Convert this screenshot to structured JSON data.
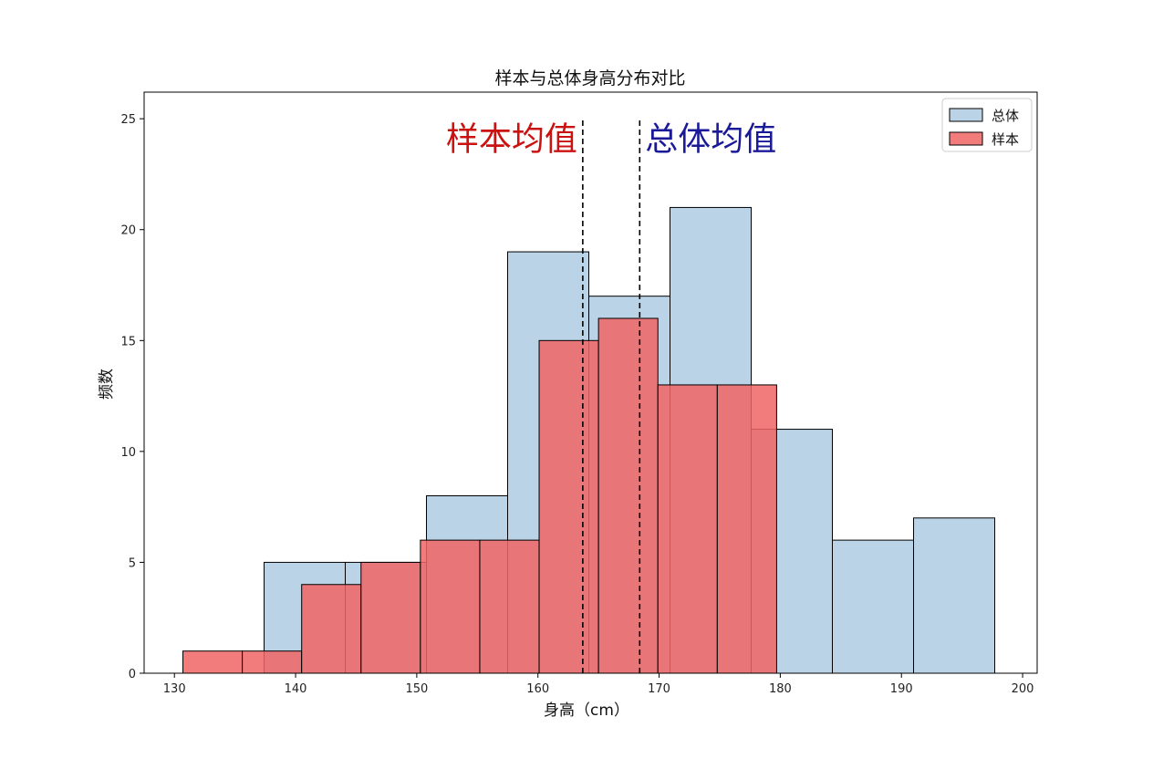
{
  "chart_data": {
    "type": "bar",
    "title": "样本与总体身高分布对比",
    "xlabel": "身高（cm）",
    "ylabel": "频数",
    "xlim": [
      127.5,
      201.2
    ],
    "ylim": [
      0,
      26.2
    ],
    "xticks": [
      130,
      140,
      150,
      160,
      170,
      180,
      190,
      200
    ],
    "yticks": [
      0,
      5,
      10,
      15,
      20,
      25
    ],
    "grid": false,
    "legend_position": "top-right",
    "series": [
      {
        "name": "总体",
        "color": "#a9c8e0",
        "bins": [
          {
            "x0": 137.4,
            "x1": 144.1,
            "count": 5
          },
          {
            "x0": 144.1,
            "x1": 150.8,
            "count": 5
          },
          {
            "x0": 150.8,
            "x1": 157.5,
            "count": 8
          },
          {
            "x0": 157.5,
            "x1": 164.2,
            "count": 19
          },
          {
            "x0": 164.2,
            "x1": 170.9,
            "count": 17
          },
          {
            "x0": 170.9,
            "x1": 177.6,
            "count": 21
          },
          {
            "x0": 177.6,
            "x1": 184.3,
            "count": 11
          },
          {
            "x0": 184.3,
            "x1": 191.0,
            "count": 6
          },
          {
            "x0": 191.0,
            "x1": 197.7,
            "count": 7
          }
        ]
      },
      {
        "name": "样本",
        "color": "#f06464",
        "bins": [
          {
            "x0": 130.7,
            "x1": 135.6,
            "count": 1
          },
          {
            "x0": 135.6,
            "x1": 140.5,
            "count": 1
          },
          {
            "x0": 140.5,
            "x1": 145.4,
            "count": 4
          },
          {
            "x0": 145.4,
            "x1": 150.3,
            "count": 5
          },
          {
            "x0": 150.3,
            "x1": 155.2,
            "count": 6
          },
          {
            "x0": 155.2,
            "x1": 160.1,
            "count": 6
          },
          {
            "x0": 160.1,
            "x1": 165.0,
            "count": 15
          },
          {
            "x0": 165.0,
            "x1": 169.9,
            "count": 16
          },
          {
            "x0": 169.9,
            "x1": 174.8,
            "count": 13
          },
          {
            "x0": 174.8,
            "x1": 179.7,
            "count": 13
          }
        ]
      }
    ],
    "mean_lines": [
      {
        "name": "样本均值",
        "x": 163.7,
        "color": "#cc1111",
        "label_side": "left"
      },
      {
        "name": "总体均值",
        "x": 168.4,
        "color": "#1a1a99",
        "label_side": "right"
      }
    ]
  }
}
